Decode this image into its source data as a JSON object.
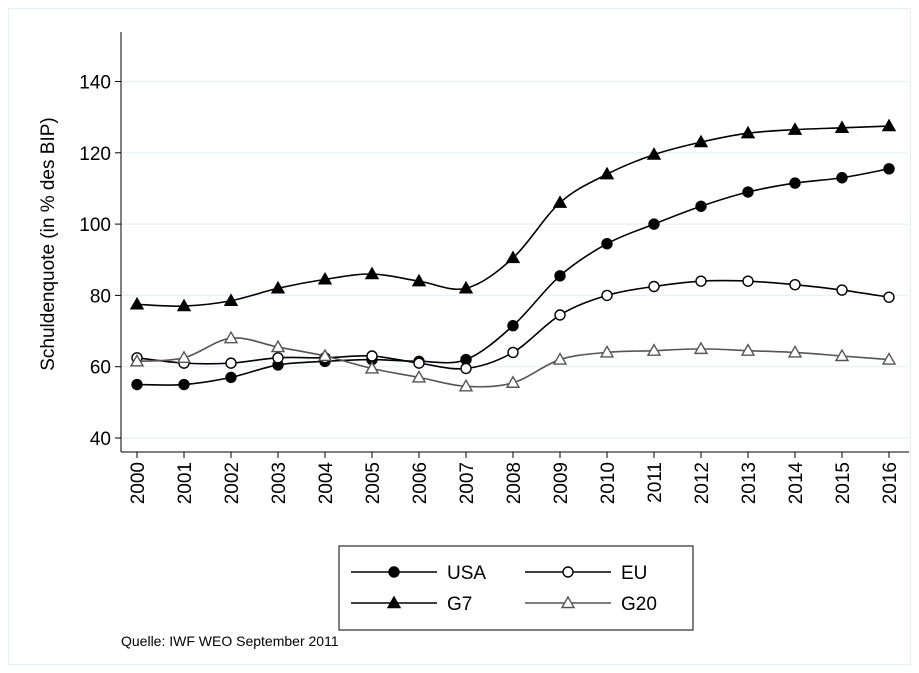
{
  "chart_data": {
    "type": "line",
    "title": "",
    "xlabel": "",
    "ylabel": "Schuldenquote (in % des BIP)",
    "x": [
      "2000",
      "2001",
      "2002",
      "2003",
      "2004",
      "2005",
      "2006",
      "2007",
      "2008",
      "2009",
      "2010",
      "2011",
      "2012",
      "2013",
      "2014",
      "2015",
      "2016"
    ],
    "ylim": [
      35,
      155
    ],
    "yticks": [
      "40",
      "60",
      "80",
      "100",
      "120",
      "140"
    ],
    "grid": "horizontal",
    "series": [
      {
        "name": "USA",
        "marker": "filled-circle",
        "color": "#000000",
        "values": [
          55,
          55,
          57,
          60.5,
          61.5,
          62,
          61.5,
          62,
          71.5,
          85.5,
          94.5,
          100,
          105,
          109,
          111.5,
          113,
          115.5
        ]
      },
      {
        "name": "EU",
        "marker": "hollow-circle",
        "color": "#000000",
        "values": [
          62.5,
          61,
          61,
          62.5,
          62.5,
          63,
          61,
          59.5,
          64,
          74.5,
          80,
          82.5,
          84,
          84,
          83,
          81.5,
          79.5
        ]
      },
      {
        "name": "G7",
        "marker": "filled-triangle",
        "color": "#000000",
        "values": [
          77.5,
          77,
          78.5,
          82,
          84.5,
          86,
          84,
          82,
          90.5,
          106,
          114,
          119.5,
          123,
          125.5,
          126.5,
          127,
          127.5
        ]
      },
      {
        "name": "G20",
        "marker": "hollow-triangle",
        "color": "#555555",
        "values": [
          61.5,
          62.5,
          68,
          65.5,
          63,
          59.5,
          57,
          54.5,
          55.5,
          62,
          64,
          64.5,
          65,
          64.5,
          64,
          63,
          62
        ]
      }
    ],
    "legend_position": "bottom"
  },
  "source_note": "Quelle: IWF WEO September 2011"
}
